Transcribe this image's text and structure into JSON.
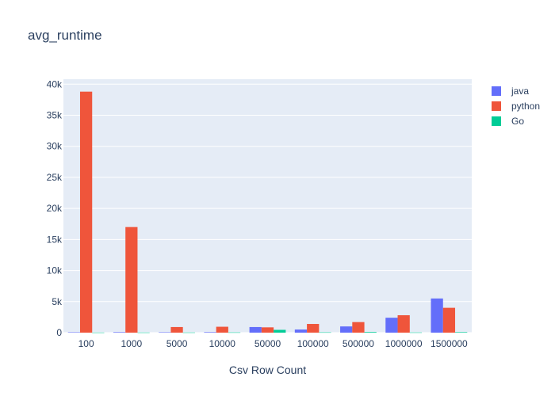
{
  "chart_data": {
    "type": "bar",
    "title": "avg_runtime",
    "xlabel": "Csv Row Count",
    "ylabel": "",
    "categories": [
      "100",
      "1000",
      "5000",
      "10000",
      "50000",
      "100000",
      "500000",
      "1000000",
      "1500000"
    ],
    "series": [
      {
        "name": "java",
        "color": "#636efa",
        "values": [
          60,
          80,
          60,
          80,
          900,
          500,
          1000,
          2400,
          5500
        ]
      },
      {
        "name": "python",
        "color": "#ef553b",
        "values": [
          38800,
          17000,
          900,
          950,
          850,
          1400,
          1700,
          2800,
          4000
        ]
      },
      {
        "name": "Go",
        "color": "#00cc96",
        "values": [
          15,
          20,
          25,
          40,
          450,
          50,
          100,
          30,
          80
        ]
      }
    ],
    "ylim": [
      0,
      40800
    ],
    "yticks": [
      0,
      5000,
      10000,
      15000,
      20000,
      25000,
      30000,
      35000,
      40000
    ],
    "ytick_labels": [
      "0",
      "5k",
      "10k",
      "15k",
      "20k",
      "25k",
      "30k",
      "35k",
      "40k"
    ],
    "grid": true,
    "legend_position": "top-right",
    "plot_background": "#e5ecf6"
  }
}
